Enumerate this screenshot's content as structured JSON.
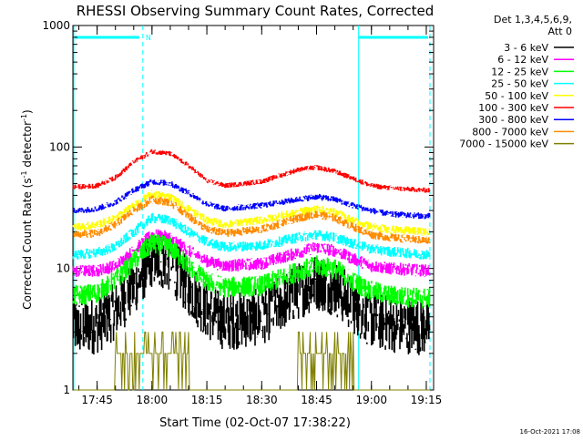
{
  "chart_data": {
    "type": "line",
    "title": "RHESSI Observing Summary Count Rates, Corrected",
    "xlabel": "Start Time (02-Oct-07 17:38:22)",
    "ylabel_main": "Corrected Count Rate (s",
    "ylabel_sup1": "-1",
    "ylabel_mid": " detector",
    "ylabel_sup2": "-1",
    "ylabel_end": ")",
    "y_scale": "log",
    "ylim": [
      1,
      1000
    ],
    "xlim": [
      "17:38:22",
      "19:17:00"
    ],
    "x_ticks": [
      "17:45",
      "18:00",
      "18:15",
      "18:30",
      "18:45",
      "19:00",
      "19:15"
    ],
    "y_ticks": [
      "1",
      "10",
      "100",
      "1000"
    ],
    "legend_header_1": "Det 1,3,4,5,6,9,",
    "legend_header_2": "Att 0",
    "legend_position": "right",
    "series": [
      {
        "name": "3 - 6 keV",
        "color": "#000000",
        "x": [
          "17:40",
          "17:45",
          "17:50",
          "17:55",
          "18:00",
          "18:05",
          "18:10",
          "18:15",
          "18:20",
          "18:30",
          "18:40",
          "18:45",
          "18:50",
          "18:55",
          "19:00",
          "19:05",
          "19:10",
          "19:15"
        ],
        "y": [
          3.3,
          3.4,
          4.5,
          7,
          12,
          11,
          7,
          4.5,
          3.6,
          4,
          6.5,
          7.8,
          7,
          5,
          3.8,
          3.5,
          3.4,
          3.3
        ]
      },
      {
        "name": "6 - 12 keV",
        "color": "#ff00ff",
        "x": [
          "17:40",
          "17:45",
          "17:50",
          "17:55",
          "18:00",
          "18:05",
          "18:10",
          "18:15",
          "18:20",
          "18:30",
          "18:40",
          "18:45",
          "18:50",
          "18:55",
          "19:00",
          "19:05",
          "19:10",
          "19:15"
        ],
        "y": [
          9.5,
          9.6,
          10.5,
          14,
          19,
          18,
          14,
          11.5,
          10.5,
          11,
          13.5,
          15,
          14,
          12,
          10.5,
          10,
          9.8,
          9.6
        ]
      },
      {
        "name": "12 - 25 keV",
        "color": "#00ff00",
        "x": [
          "17:40",
          "17:45",
          "17:50",
          "17:55",
          "18:00",
          "18:05",
          "18:10",
          "18:15",
          "18:20",
          "18:30",
          "18:40",
          "18:45",
          "18:50",
          "18:55",
          "19:00",
          "19:05",
          "19:10",
          "19:15"
        ],
        "y": [
          6,
          6.3,
          8,
          11.5,
          16,
          15,
          10.5,
          7.8,
          7,
          7.2,
          9.5,
          10.5,
          10,
          7.8,
          6.5,
          6,
          5.8,
          5.7
        ]
      },
      {
        "name": "25 - 50 keV",
        "color": "#00ffff",
        "x": [
          "17:40",
          "17:45",
          "17:50",
          "17:55",
          "18:00",
          "18:05",
          "18:10",
          "18:15",
          "18:20",
          "18:30",
          "18:40",
          "18:45",
          "18:50",
          "18:55",
          "19:00",
          "19:05",
          "19:10",
          "19:15"
        ],
        "y": [
          13,
          13.5,
          15,
          20,
          26,
          25,
          20,
          16.5,
          15,
          15.5,
          18,
          19,
          18,
          16,
          14.5,
          13.8,
          13.4,
          13
        ]
      },
      {
        "name": "50 - 100 keV",
        "color": "#ffff00",
        "x": [
          "17:40",
          "17:45",
          "17:50",
          "17:55",
          "18:00",
          "18:05",
          "18:10",
          "18:15",
          "18:20",
          "18:30",
          "18:40",
          "18:45",
          "18:50",
          "18:55",
          "19:00",
          "19:05",
          "19:10",
          "19:15"
        ],
        "y": [
          22,
          23,
          26,
          33,
          41,
          39,
          31,
          25,
          23,
          25,
          29,
          31,
          29,
          25,
          22,
          21,
          20.5,
          20
        ]
      },
      {
        "name": "100 - 300 keV",
        "color": "#ff0000",
        "x": [
          "17:40",
          "17:45",
          "17:50",
          "17:55",
          "18:00",
          "18:05",
          "18:10",
          "18:15",
          "18:20",
          "18:30",
          "18:40",
          "18:45",
          "18:50",
          "18:55",
          "19:00",
          "19:05",
          "19:10",
          "19:15"
        ],
        "y": [
          47,
          48,
          56,
          75,
          92,
          88,
          70,
          53,
          48,
          52,
          65,
          68,
          63,
          55,
          48,
          46,
          45,
          44
        ]
      },
      {
        "name": "300 - 800 keV",
        "color": "#0000ff",
        "x": [
          "17:40",
          "17:45",
          "17:50",
          "17:55",
          "18:00",
          "18:05",
          "18:10",
          "18:15",
          "18:20",
          "18:30",
          "18:40",
          "18:45",
          "18:50",
          "18:55",
          "19:00",
          "19:05",
          "19:10",
          "19:15"
        ],
        "y": [
          30,
          31,
          35,
          44,
          52,
          50,
          42,
          34,
          31,
          33,
          37,
          39,
          37,
          33,
          30,
          28,
          27.5,
          27
        ]
      },
      {
        "name": "800 - 7000 keV",
        "color": "#ff8c00",
        "x": [
          "17:40",
          "17:45",
          "17:50",
          "17:55",
          "18:00",
          "18:05",
          "18:10",
          "18:15",
          "18:20",
          "18:30",
          "18:40",
          "18:45",
          "18:50",
          "18:55",
          "19:00",
          "19:05",
          "19:10",
          "19:15"
        ],
        "y": [
          19,
          19.5,
          23,
          30,
          37,
          35,
          27,
          21,
          19.5,
          21,
          26,
          28,
          26,
          22,
          19,
          18,
          17.5,
          17
        ]
      },
      {
        "name": "7000 - 15000 keV",
        "color": "#808000",
        "x": [
          "17:40",
          "17:45",
          "17:50",
          "17:55",
          "18:00",
          "18:05",
          "18:10",
          "18:15",
          "18:20",
          "18:30",
          "18:40",
          "18:45",
          "18:50",
          "18:55",
          "19:00",
          "19:05",
          "19:10",
          "19:15"
        ],
        "y": [
          1,
          1,
          2,
          2.5,
          3,
          2.5,
          2,
          1,
          1,
          1,
          2,
          2,
          2,
          2,
          1,
          1,
          1,
          1
        ]
      }
    ],
    "annotations": {
      "night_marker": "N",
      "timestamp": "16-Oct-2021 17:08"
    },
    "colors": {
      "background": "#ffffff",
      "axes": "#000000",
      "orbit_markers": "#00ffff"
    }
  }
}
